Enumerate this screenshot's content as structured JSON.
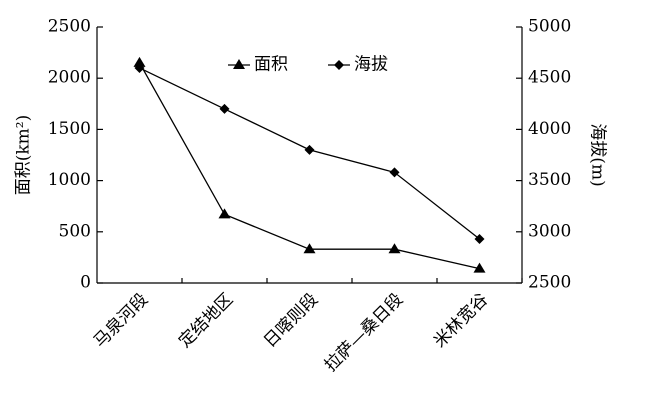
{
  "chart_data": {
    "type": "line",
    "categories": [
      "马泉河段",
      "定结地区",
      "日喀则段",
      "拉萨—桑日段",
      "米林宽谷"
    ],
    "series": [
      {
        "name": "面积",
        "color": "#000000",
        "marker": "triangle",
        "values": [
          2150,
          670,
          330,
          330,
          140
        ]
      },
      {
        "name": "海拔",
        "color": "#000000",
        "marker": "diamond",
        "axis": "y2",
        "values": [
          4600,
          4200,
          3800,
          3580,
          2930
        ]
      }
    ],
    "ylabel": "面积(km²)",
    "y2label": "海拔(m)",
    "ylim": [
      0,
      2500
    ],
    "yticks": [
      0,
      500,
      1000,
      1500,
      2000,
      2500
    ],
    "y2lim": [
      2500,
      5000
    ],
    "y2ticks": [
      2500,
      3000,
      3500,
      4000,
      4500,
      5000
    ],
    "legend": "top"
  }
}
